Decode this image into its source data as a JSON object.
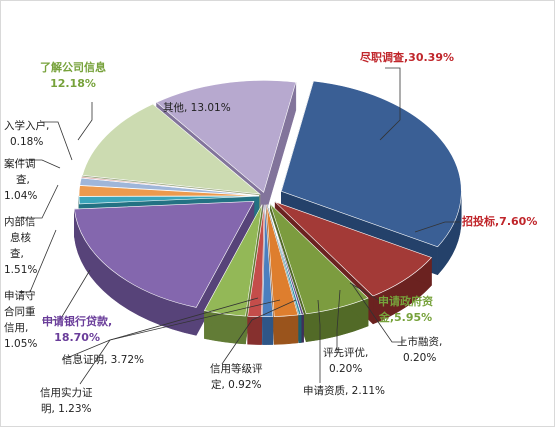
{
  "chart_data": {
    "type": "pie",
    "slices": [
      {
        "label": "尽职调查",
        "value": 30.39,
        "pct": "30.39%",
        "color": "#3A5F95",
        "side": "#24416A",
        "explode": 18
      },
      {
        "label": "招投标",
        "value": 7.6,
        "pct": "7.60%",
        "color": "#A33A37",
        "side": "#6B2220",
        "explode": 14
      },
      {
        "label": "申请政府资金",
        "value": 5.95,
        "pct": "5.95%",
        "color": "#7C9C3F",
        "side": "#526A27",
        "explode": 14
      },
      {
        "label": "上市融资",
        "value": 0.2,
        "pct": "0.20%",
        "color": "#5E4A86",
        "side": "#3E305A",
        "explode": 14
      },
      {
        "label": "评先评优",
        "value": 0.2,
        "pct": "0.20%",
        "color": "#2E8FA6",
        "side": "#1D5F6F",
        "explode": 14
      },
      {
        "label": "申请资质",
        "value": 2.11,
        "pct": "2.11%",
        "color": "#DE7E2E",
        "side": "#9A541C",
        "explode": 14
      },
      {
        "label": "信用等级评定",
        "value": 0.92,
        "pct": "0.92%",
        "color": "#4B7FBF",
        "side": "#2F5687",
        "explode": 14
      },
      {
        "label": "信用实力证明",
        "value": 1.23,
        "pct": "1.23%",
        "color": "#C44D4A",
        "side": "#86302E",
        "explode": 14
      },
      {
        "label": "信息证明",
        "value": 3.72,
        "pct": "3.72%",
        "color": "#93B857",
        "side": "#627C36",
        "explode": 14
      },
      {
        "label": "申请银行贷款",
        "value": 18.7,
        "pct": "18.70%",
        "color": "#8467AE",
        "side": "#574379",
        "explode": 14
      },
      {
        "label": "申请守合同重信用",
        "value": 1.05,
        "pct": "1.05%",
        "color": "#3AA4BA",
        "side": "#237283",
        "explode": 6
      },
      {
        "label": "内部信息核查",
        "value": 1.51,
        "pct": "1.51%",
        "color": "#EC9A4E",
        "side": "#A9662C",
        "explode": 6
      },
      {
        "label": "案件调查",
        "value": 1.04,
        "pct": "1.04%",
        "color": "#9FB6D9",
        "side": "#6E86AC",
        "explode": 6
      },
      {
        "label": "入学入户",
        "value": 0.18,
        "pct": "0.18%",
        "color": "#D69694",
        "side": "#9E6462",
        "explode": 6
      },
      {
        "label": "了解公司信息",
        "value": 12.18,
        "pct": "12.18%",
        "color": "#CCDBB1",
        "side": "#92A478",
        "explode": 6
      },
      {
        "label": "其他",
        "value": 13.01,
        "pct": "13.01%",
        "color": "#B7A9CF",
        "side": "#82749B",
        "explode": 6
      }
    ]
  },
  "labels": {
    "jinzhi": {
      "line1": "尽职调查,30.39%",
      "color": "#C0262B"
    },
    "zhaotoubiao": {
      "line1": "招投标,7.60%",
      "color": "#C0262B"
    },
    "zhengfu": {
      "line1": "申请政府资",
      "line2": "金,5.95%",
      "color": "#77A23B"
    },
    "shangshi": {
      "line1": "上市融资,",
      "line2": "0.20%"
    },
    "pingxian": {
      "line1": "评先评优,",
      "line2": "0.20%"
    },
    "zizhi": {
      "line1": "申请资质, 2.11%"
    },
    "dengji": {
      "line1": "信用等级评",
      "line2": "定, 0.92%"
    },
    "shili": {
      "line1": "信用实力证",
      "line2": "明, 1.23%"
    },
    "xinxi": {
      "line1": "信息证明, 3.72%"
    },
    "daikuan": {
      "line1": "申请银行贷款,",
      "line2": "18.70%",
      "color": "#6A3D9A"
    },
    "shouhetong": {
      "line1": "申请守",
      "line2": "合同重",
      "line3": "信用,",
      "line4": "1.05%"
    },
    "neibu": {
      "line1": "内部信",
      "line2": "息核",
      "line3": "查,",
      "line4": "1.51%"
    },
    "anjian": {
      "line1": "案件调",
      "line2": "查,",
      "line3": "1.04%"
    },
    "ruxue": {
      "line1": "入学入户,",
      "line2": "0.18%"
    },
    "liaojie": {
      "line1": "了解公司信息",
      "line2": "12.18%",
      "color": "#77A23B"
    },
    "qita": {
      "line1": "其他, 13.01%"
    }
  }
}
